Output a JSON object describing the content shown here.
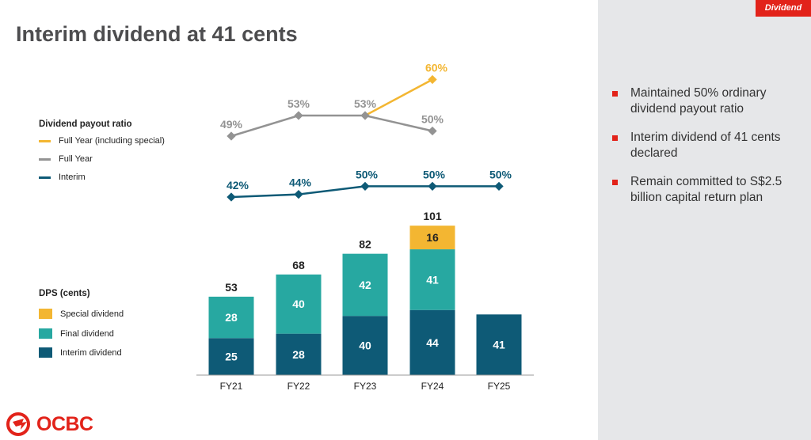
{
  "title": "Interim dividend at 41 cents",
  "section_tag": "Dividend",
  "bullets": [
    "Maintained 50% ordinary dividend payout ratio",
    "Interim dividend of 41 cents declared",
    "Remain committed to S$2.5 billion capital return plan"
  ],
  "logo_text": "OCBC",
  "colors": {
    "interim": "#0e5a76",
    "final": "#27a8a1",
    "special": "#f3b632",
    "full_year_line": "#939393",
    "full_year_special_line": "#f3b632",
    "interim_line": "#0e5a76",
    "accent": "#e2231a"
  },
  "chart_data": [
    {
      "type": "line",
      "title": "Dividend payout ratio",
      "categories": [
        "FY21",
        "FY22",
        "FY23",
        "FY24",
        "FY25"
      ],
      "series": [
        {
          "name": "Full Year (including special)",
          "values": [
            null,
            null,
            53,
            60,
            null
          ],
          "labels": [
            null,
            null,
            null,
            "60%",
            null
          ]
        },
        {
          "name": "Full Year",
          "values": [
            49,
            53,
            53,
            50,
            null
          ],
          "labels": [
            "49%",
            "53%",
            "53%",
            "50%",
            null
          ]
        },
        {
          "name": "Interim",
          "values": [
            42,
            44,
            50,
            50,
            50
          ],
          "labels": [
            "42%",
            "44%",
            "50%",
            "50%",
            "50%"
          ]
        }
      ]
    },
    {
      "type": "bar",
      "stacked": true,
      "title": "DPS (cents)",
      "categories": [
        "FY21",
        "FY22",
        "FY23",
        "FY24",
        "FY25"
      ],
      "series": [
        {
          "name": "Special dividend",
          "values": [
            0,
            0,
            0,
            16,
            0
          ]
        },
        {
          "name": "Final dividend",
          "values": [
            28,
            40,
            42,
            41,
            0
          ]
        },
        {
          "name": "Interim dividend",
          "values": [
            25,
            28,
            40,
            44,
            41
          ]
        }
      ],
      "totals": [
        53,
        68,
        82,
        101,
        null
      ]
    }
  ]
}
